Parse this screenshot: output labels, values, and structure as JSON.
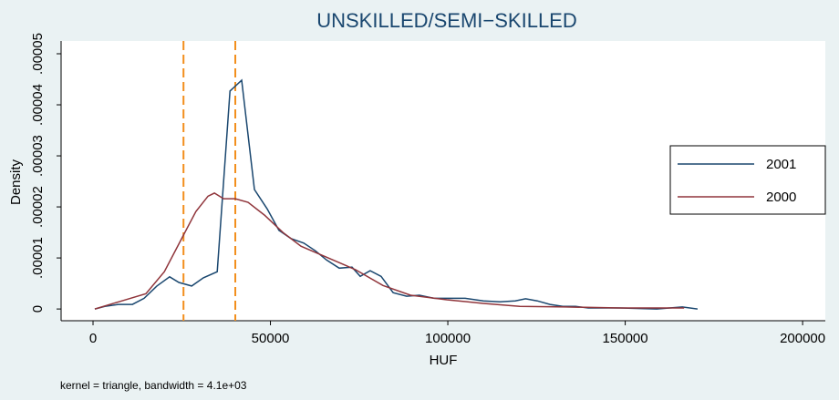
{
  "chart_data": {
    "type": "line",
    "title": "UNSKILLED/SEMI−SKILLED",
    "xlabel": "HUF",
    "ylabel": "Density",
    "note": "kernel = triangle, bandwidth =  4.1e+03",
    "xlim": [
      -9000,
      206400
    ],
    "xticks": [
      0,
      50000,
      100000,
      150000,
      200000
    ],
    "ylim": [
      -2.3e-06,
      5.25e-05
    ],
    "yticks": [
      0,
      {
        "value": 1e-05,
        "label": ".00001"
      },
      {
        "value": 2e-05,
        "label": ".00002"
      },
      {
        "value": 3e-05,
        "label": ".00003"
      },
      {
        "value": 4e-05,
        "label": ".00004"
      },
      {
        "value": 5e-05,
        "label": ".00005"
      }
    ],
    "legend": "right",
    "reference_lines": {
      "values": [
        25500,
        40100
      ],
      "color": "#f28e1c"
    },
    "series": [
      {
        "name": "2001",
        "color": "#1a476f",
        "x": [
          500,
          3300,
          7200,
          11100,
          14400,
          18000,
          21600,
          24200,
          27800,
          31100,
          35000,
          38600,
          41900,
          45500,
          49100,
          52400,
          55800,
          59400,
          62700,
          65800,
          69400,
          73000,
          75300,
          78100,
          81200,
          84600,
          88400,
          92000,
          96100,
          99700,
          104900,
          110000,
          114700,
          119000,
          121900,
          125200,
          128800,
          132400,
          136000,
          139600,
          143700,
          148600,
          158900,
          166100,
          170400
        ],
        "values": [
          0,
          5e-07,
          9e-07,
          9e-07,
          2.1e-06,
          4.5e-06,
          6.3e-06,
          5.2e-06,
          4.5e-06,
          6.1e-06,
          7.3e-06,
          4.27e-05,
          4.48e-05,
          2.34e-05,
          1.96e-05,
          1.54e-05,
          1.38e-05,
          1.29e-05,
          1.14e-05,
          9.6e-06,
          8e-06,
          8.2e-06,
          6.4e-06,
          7.5e-06,
          6.4e-06,
          3.2e-06,
          2.5e-06,
          2.7e-06,
          2.1e-06,
          2.1e-06,
          2.1e-06,
          1.6e-06,
          1.4e-06,
          1.6e-06,
          2e-06,
          1.6e-06,
          9e-07,
          5e-07,
          5e-07,
          2e-07,
          2e-07,
          2e-07,
          0,
          4e-07,
          0
        ]
      },
      {
        "name": "2000",
        "color": "#90353b",
        "x": [
          500,
          7200,
          14900,
          20100,
          25200,
          29000,
          32400,
          34200,
          36800,
          40100,
          43700,
          48300,
          53500,
          58600,
          66300,
          74000,
          81700,
          89500,
          99700,
          110000,
          120300,
          133200,
          148600,
          166600
        ],
        "values": [
          0,
          1.4e-06,
          3e-06,
          7.3e-06,
          1.41e-05,
          1.91e-05,
          2.21e-05,
          2.27e-05,
          2.16e-05,
          2.16e-05,
          2.09e-05,
          1.84e-05,
          1.5e-05,
          1.23e-05,
          1e-05,
          7.7e-06,
          4.6e-06,
          2.7e-06,
          1.8e-06,
          1.1e-06,
          5e-07,
          4e-07,
          2e-07,
          2e-07
        ]
      }
    ]
  }
}
